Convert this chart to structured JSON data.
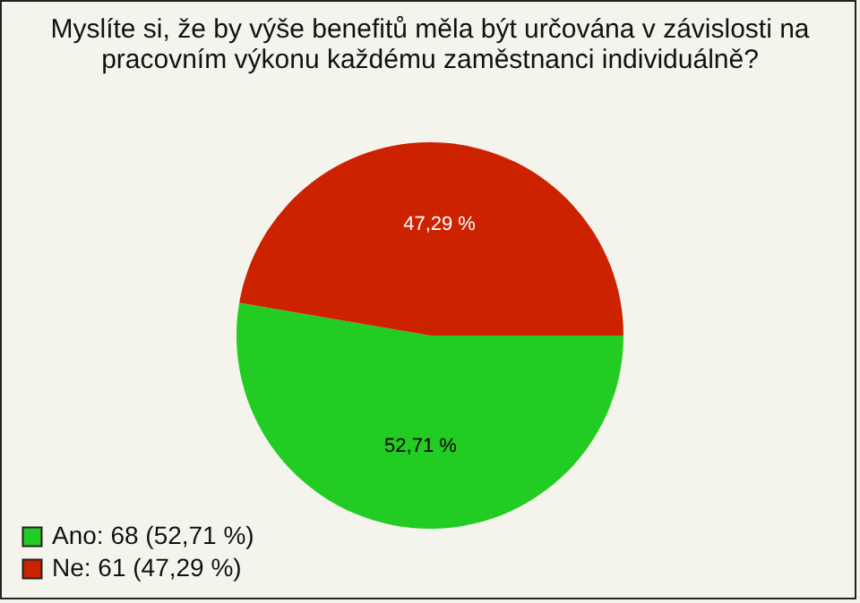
{
  "chart_data": {
    "type": "pie",
    "title": "Myslíte si, že by výše benefitů měla být určována v závislosti na pracovním výkonu každému zaměstnanci individuálně?",
    "categories": [
      "Ano: 68 (52,71 %)",
      "Ne: 61 (47,29 %)"
    ],
    "values": [
      52.71,
      47.29
    ],
    "colors": [
      "#22cc22",
      "#cc2200"
    ],
    "value_labels": [
      "52,71 %",
      "47,29 %"
    ],
    "legend": "bottom left"
  }
}
